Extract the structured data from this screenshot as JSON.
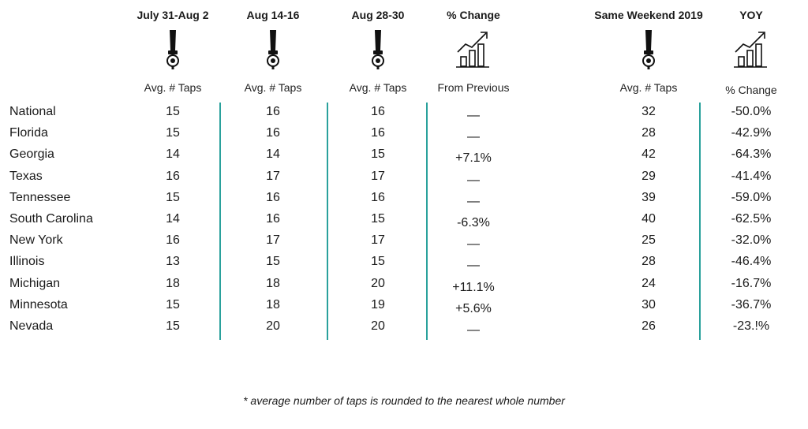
{
  "colors": {
    "divider": "#2aa19c",
    "text": "#1a1a1a"
  },
  "chart_data": {
    "type": "table",
    "columns": [
      {
        "key": "c1",
        "header": "July 31-Aug 2",
        "subheader": "Avg. # Taps",
        "icon": "beer-tap-icon"
      },
      {
        "key": "c2",
        "header": "Aug 14-16",
        "subheader": "Avg. # Taps",
        "icon": "beer-tap-icon"
      },
      {
        "key": "c3",
        "header": "Aug 28-30",
        "subheader": "Avg. # Taps",
        "icon": "beer-tap-icon"
      },
      {
        "key": "c4",
        "header": "% Change",
        "subheader": "From Previous",
        "icon": "growth-chart-icon"
      },
      {
        "key": "c5",
        "header": "Same Weekend 2019",
        "subheader": "Avg. # Taps",
        "icon": "beer-tap-icon"
      },
      {
        "key": "c6",
        "header": "YOY",
        "subheader": "% Change",
        "icon": "growth-chart-icon"
      }
    ],
    "rows": [
      {
        "label": "National",
        "values": [
          "15",
          "16",
          "16",
          "—",
          "32",
          "-50.0%"
        ]
      },
      {
        "label": "Florida",
        "values": [
          "15",
          "16",
          "16",
          "—",
          "28",
          "-42.9%"
        ]
      },
      {
        "label": "Georgia",
        "values": [
          "14",
          "14",
          "15",
          "+7.1%",
          "42",
          "-64.3%"
        ]
      },
      {
        "label": "Texas",
        "values": [
          "16",
          "17",
          "17",
          "—",
          "29",
          "-41.4%"
        ]
      },
      {
        "label": "Tennessee",
        "values": [
          "15",
          "16",
          "16",
          "—",
          "39",
          "-59.0%"
        ]
      },
      {
        "label": "South Carolina",
        "values": [
          "14",
          "16",
          "15",
          "-6.3%",
          "40",
          "-62.5%"
        ]
      },
      {
        "label": "New York",
        "values": [
          "16",
          "17",
          "17",
          "—",
          "25",
          "-32.0%"
        ]
      },
      {
        "label": "Illinois",
        "values": [
          "13",
          "15",
          "15",
          "—",
          "28",
          "-46.4%"
        ]
      },
      {
        "label": "Michigan",
        "values": [
          "18",
          "18",
          "20",
          "+11.1%",
          "24",
          "-16.7%"
        ]
      },
      {
        "label": "Minnesota",
        "values": [
          "15",
          "18",
          "19",
          "+5.6%",
          "30",
          "-36.7%"
        ]
      },
      {
        "label": "Nevada",
        "values": [
          "15",
          "20",
          "20",
          "—",
          "26",
          "-23.!%"
        ]
      }
    ],
    "footnote": "* average number of taps is rounded to the nearest whole number"
  }
}
